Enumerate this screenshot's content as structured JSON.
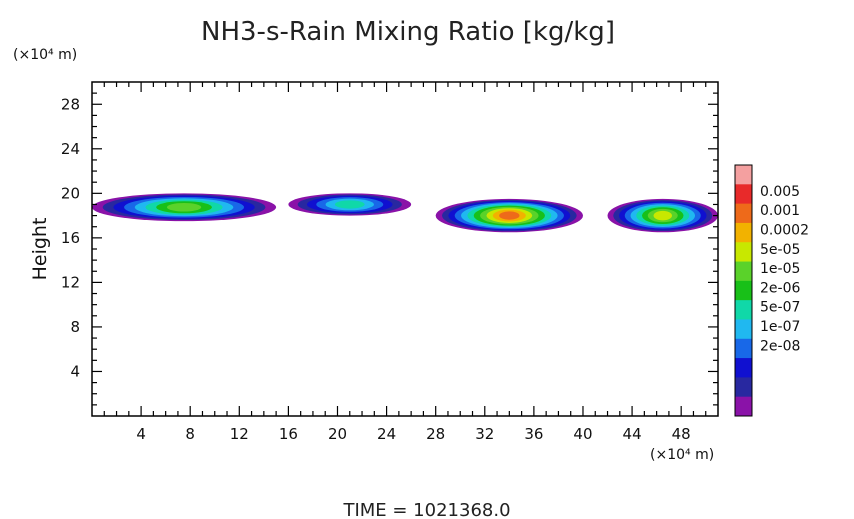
{
  "chart_data": {
    "type": "heatmap",
    "title": "NH3-s-Rain Mixing Ratio [kg/kg]",
    "ylabel": "Height",
    "x_unit": "(×10⁴ m)",
    "y_unit": "(×10⁴ m)",
    "xlim": [
      0,
      51
    ],
    "ylim": [
      0,
      30
    ],
    "x_ticks": [
      4,
      8,
      12,
      16,
      20,
      24,
      28,
      32,
      36,
      40,
      44,
      48
    ],
    "y_ticks": [
      4,
      8,
      12,
      16,
      20,
      24,
      28
    ],
    "colorbar": {
      "labels": [
        "0.005",
        "0.001",
        "0.0002",
        "5e-05",
        "1e-05",
        "2e-06",
        "5e-07",
        "1e-07",
        "2e-08"
      ],
      "colors": [
        "#f4a0a0",
        "#e82a2a",
        "#ee6a1a",
        "#f2b200",
        "#c8e800",
        "#5ad22a",
        "#18c018",
        "#10d8a8",
        "#20b8f0",
        "#1868e8",
        "#1010d0",
        "#2828a0",
        "#8a12a8"
      ]
    },
    "regions": [
      {
        "x_range": [
          0,
          15
        ],
        "y_range": [
          17.5,
          20
        ],
        "level": "1e-05"
      },
      {
        "x_range": [
          16,
          26
        ],
        "y_range": [
          18,
          20
        ],
        "level": "5e-07"
      },
      {
        "x_range": [
          28,
          40
        ],
        "y_range": [
          16.5,
          19.5
        ],
        "level": "0.001"
      },
      {
        "x_range": [
          42,
          51
        ],
        "y_range": [
          16.5,
          19.5
        ],
        "level": "5e-05"
      }
    ],
    "time_label": "TIME  =  1021368.0"
  }
}
